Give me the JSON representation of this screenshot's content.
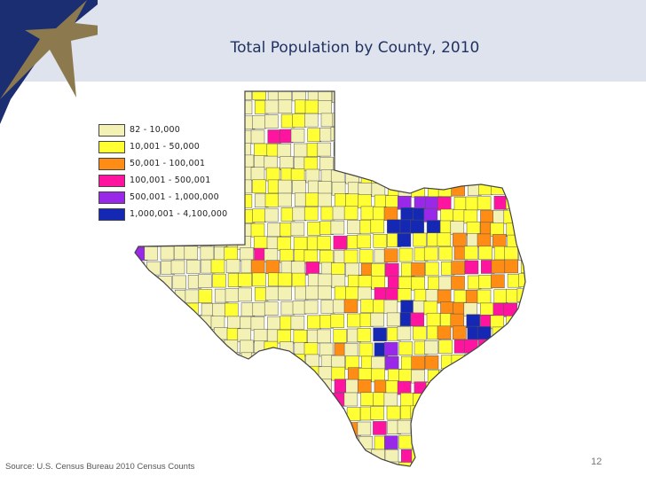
{
  "slide": {
    "title": "Total Population by County, 2010",
    "source": "Source: U.S. Census Bureau 2010 Census Counts",
    "page_number": "12"
  },
  "legend": [
    {
      "label": "82 - 10,000",
      "color": "#f4f1b4"
    },
    {
      "label": "10,001 - 50,000",
      "color": "#ffff33"
    },
    {
      "label": "50,001 - 100,001",
      "color": "#ff8c14"
    },
    {
      "label": "100,001 - 500,001",
      "color": "#ff14a0"
    },
    {
      "label": "500,001 - 1,000,000",
      "color": "#9a28e8"
    },
    {
      "label": "1,000,001 - 4,100,000",
      "color": "#1428b4"
    }
  ],
  "colors": {
    "header_band": "#dfe3ee",
    "navy": "#1c2e72",
    "star": "#8c7a4e",
    "county_outline": "#555555"
  }
}
